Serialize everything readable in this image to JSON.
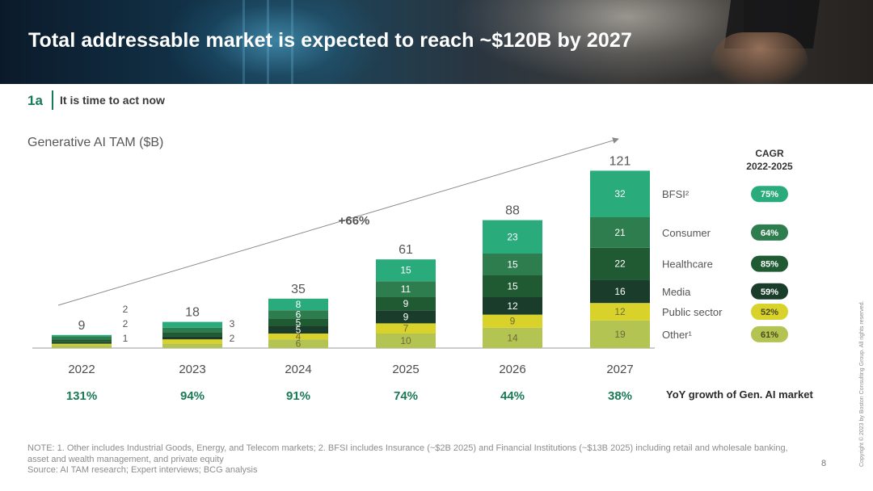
{
  "header": {
    "title": "Total addressable market is expected to reach ~$120B by 2027",
    "section_number": "1a",
    "section_title": "It is time to act now"
  },
  "colors": {
    "BFSI": "#29ab7b",
    "Consumer": "#2e7d4f",
    "Healthcare": "#1f5a33",
    "Media": "#1a3d2b",
    "Public sector": "#d8d22a",
    "Other": "#b3c453",
    "accent_green": "#197a56",
    "axis": "#999999"
  },
  "chart_data": {
    "type": "bar",
    "stacked": true,
    "title": "Generative AI TAM ($B)",
    "categories": [
      "2022",
      "2023",
      "2024",
      "2025",
      "2026",
      "2027"
    ],
    "totals": [
      "9",
      "18",
      "35",
      "61",
      "88",
      "121"
    ],
    "series": [
      {
        "name": "Other",
        "label": "Other¹",
        "values": [
          2,
          3,
          6,
          10,
          14,
          19
        ],
        "cagr": "61%"
      },
      {
        "name": "Public sector",
        "label": "Public sector",
        "values": [
          1,
          3,
          4,
          7,
          9,
          12
        ],
        "cagr": "52%"
      },
      {
        "name": "Media",
        "label": "Media",
        "values": [
          1,
          2,
          5,
          9,
          12,
          16
        ],
        "cagr": "59%"
      },
      {
        "name": "Healthcare",
        "label": "Healthcare",
        "values": [
          2,
          3,
          5,
          9,
          15,
          22
        ],
        "cagr": "85%"
      },
      {
        "name": "Consumer",
        "label": "Consumer",
        "values": [
          2,
          3,
          6,
          11,
          15,
          21
        ],
        "cagr": "64%"
      },
      {
        "name": "BFSI",
        "label": "BFSI²",
        "values": [
          1,
          4,
          8,
          15,
          23,
          32
        ],
        "cagr": "75%"
      }
    ],
    "yoy_growth": [
      "131%",
      "94%",
      "91%",
      "74%",
      "44%",
      "38%"
    ],
    "yoy_label": "YoY growth of Gen. AI market",
    "arrow_label": "+66%",
    "cagr_header": [
      "CAGR",
      "2022-2025"
    ],
    "notes_2022_side_labels": [
      "2",
      "2",
      "1"
    ],
    "notes_2023_side_labels": [
      "3",
      "2"
    ]
  },
  "footer": {
    "note": "NOTE: 1. Other includes Industrial Goods, Energy, and Telecom markets; 2. BFSI includes Insurance (~$2B 2025) and Financial Institutions (~$13B 2025) including retail and wholesale banking, asset and wealth management, and private equity",
    "source": "Source: AI TAM research; Expert interviews; BCG analysis",
    "page_number": "8",
    "copyright": "Copyright © 2023 by Boston Consulting Group. All rights reserved."
  }
}
